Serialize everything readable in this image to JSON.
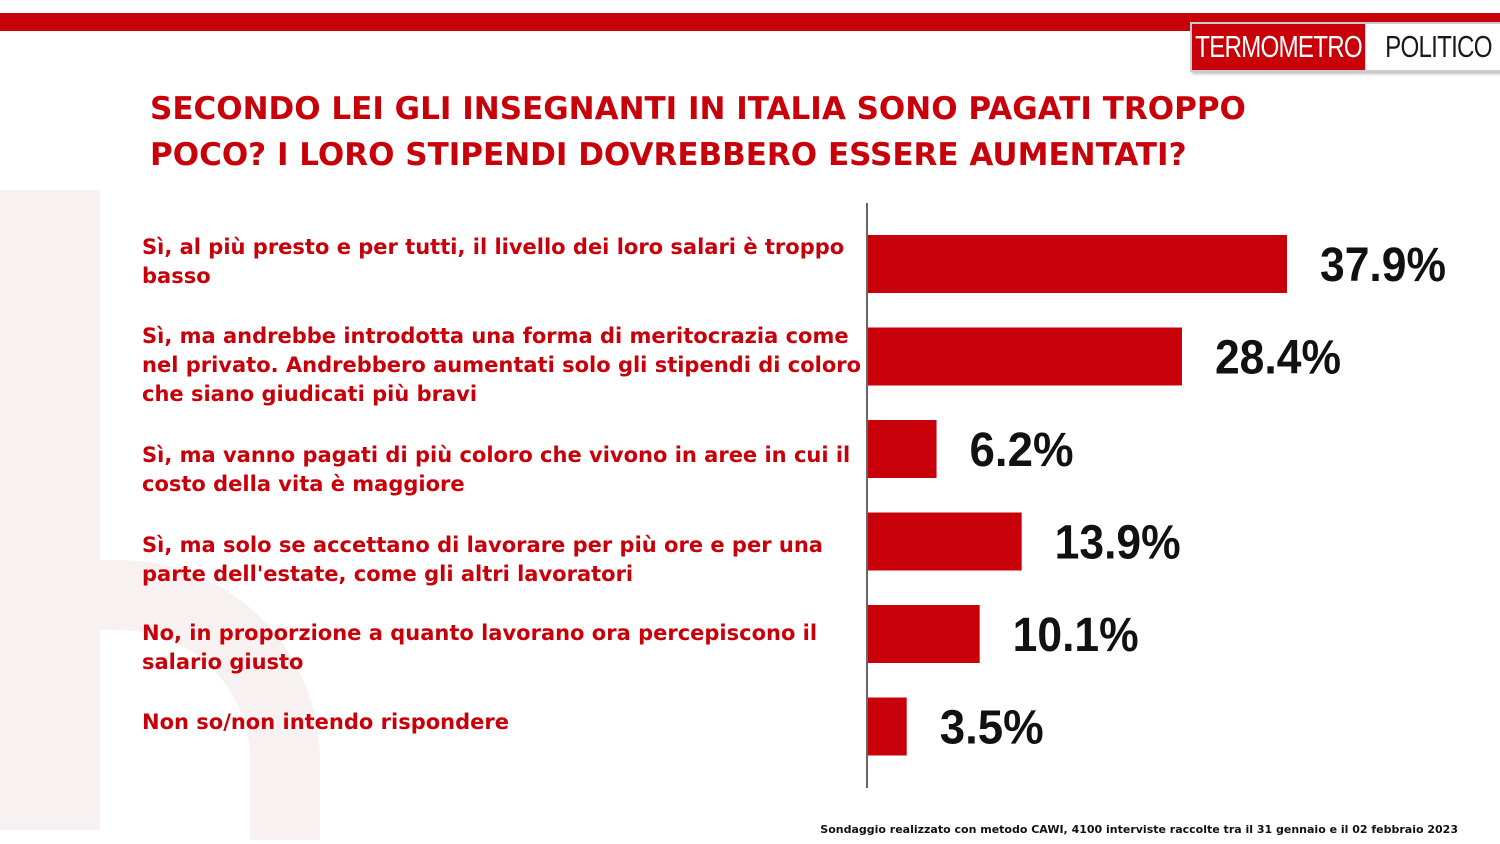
{
  "logo": {
    "left_text": "TERMOMETRO",
    "right_text": "POLITICO"
  },
  "colors": {
    "accent": "#c8000a",
    "value_text": "#111111",
    "axis": "#333333"
  },
  "footnote": "Sondaggio realizzato con metodo CAWI, 4100 interviste raccolte tra il 31 gennaio e il 02 febbraio 2023",
  "chart_data": {
    "type": "bar",
    "orientation": "horizontal",
    "title": "SECONDO LEI GLI INSEGNANTI IN ITALIA SONO PAGATI TROPPO\nPOCO? I LORO STIPENDI DOVREBBERO ESSERE AUMENTATI?",
    "categories": [
      "Sì, al più presto e per tutti, il livello dei loro salari è troppo basso",
      "Sì, ma andrebbe introdotta una forma di meritocrazia come nel privato. Andrebbero aumentati solo gli stipendi di coloro che siano giudicati più bravi",
      "Sì, ma vanno pagati di più coloro che vivono in aree in cui il costo della vita è maggiore",
      "Sì, ma solo se accettano di lavorare per più ore e per una parte dell'estate, come gli altri lavoratori",
      "No, in proporzione a quanto lavorano ora percepiscono il salario giusto",
      "Non so/non intendo rispondere"
    ],
    "values": [
      37.9,
      28.4,
      6.2,
      13.9,
      10.1,
      3.5
    ],
    "data_labels": [
      "37.9%",
      "28.4%",
      "6.2%",
      "13.9%",
      "10.1%",
      "3.5%"
    ],
    "xlim": [
      0,
      40
    ],
    "grid": false,
    "legend": "none"
  }
}
